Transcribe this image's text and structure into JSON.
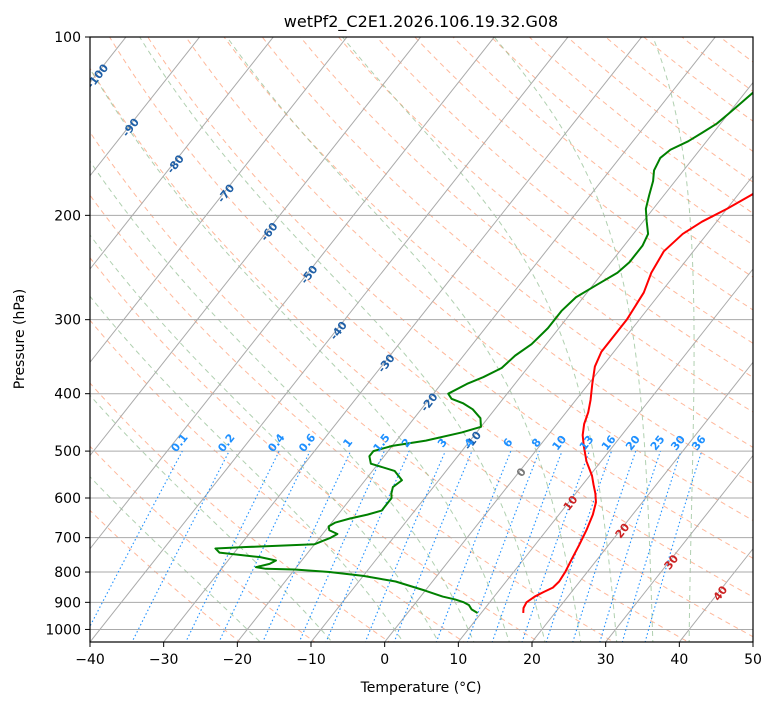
{
  "chart_data": {
    "type": "line",
    "title": "wetPf2_C2E1.2026.106.19.32.G08",
    "xlabel": "Temperature (°C)",
    "ylabel": "Pressure (hPa)",
    "xlim": [
      -40,
      50
    ],
    "ylim": [
      1050,
      100
    ],
    "y_scale": "log",
    "x_ticks": [
      "−40",
      "−30",
      "−20",
      "−10",
      "0",
      "10",
      "20",
      "30",
      "40",
      "50"
    ],
    "y_ticks": [
      "100",
      "200",
      "300",
      "400",
      "500",
      "600",
      "700",
      "800",
      "900",
      "1000"
    ],
    "grid": true,
    "series": [
      {
        "name": "",
        "color": "#ff0000",
        "points": [
          [
            15.7,
            938
          ],
          [
            15.2,
            920
          ],
          [
            15.0,
            900
          ],
          [
            15.5,
            880
          ],
          [
            16.2,
            865
          ],
          [
            17.0,
            850
          ],
          [
            17.2,
            830
          ],
          [
            17.0,
            800
          ],
          [
            16.5,
            760
          ],
          [
            16.0,
            720
          ],
          [
            15.4,
            680
          ],
          [
            14.6,
            640
          ],
          [
            13.7,
            610
          ],
          [
            12.7,
            590
          ],
          [
            11.5,
            570
          ],
          [
            10.3,
            550
          ],
          [
            8.0,
            520
          ],
          [
            6.0,
            490
          ],
          [
            4.7,
            470
          ],
          [
            3.7,
            450
          ],
          [
            3.0,
            430
          ],
          [
            2.0,
            410
          ],
          [
            0.5,
            385
          ],
          [
            -1.0,
            360
          ],
          [
            -1.7,
            340
          ],
          [
            -1.7,
            300
          ],
          [
            -2.3,
            270
          ],
          [
            -3.4,
            250
          ],
          [
            -4.0,
            230
          ],
          [
            -3.3,
            215
          ],
          [
            -2.0,
            205
          ],
          [
            0.0,
            195
          ],
          [
            1.8,
            185
          ],
          [
            3.5,
            175
          ],
          [
            5.2,
            167
          ],
          [
            7.0,
            160
          ],
          [
            8.2,
            155
          ],
          [
            9.4,
            150
          ],
          [
            10.3,
            145
          ],
          [
            10.8,
            140
          ],
          [
            11.3,
            135
          ],
          [
            11.9,
            130
          ],
          [
            12.5,
            126
          ],
          [
            13.5,
            122
          ],
          [
            14.8,
            118
          ],
          [
            15.8,
            114
          ],
          [
            16.6,
            110
          ],
          [
            17.4,
            106
          ],
          [
            18.6,
            102
          ],
          [
            19.0,
            100
          ]
        ]
      },
      {
        "name": "",
        "color": "#008000",
        "points": [
          [
            9.5,
            938
          ],
          [
            8.3,
            925
          ],
          [
            7.5,
            910
          ],
          [
            6.5,
            900
          ],
          [
            5.0,
            890
          ],
          [
            3.0,
            880
          ],
          [
            0.0,
            860
          ],
          [
            -5.0,
            830
          ],
          [
            -10.0,
            812
          ],
          [
            -15.0,
            800
          ],
          [
            -20.0,
            792
          ],
          [
            -24.0,
            790
          ],
          [
            -25.5,
            785
          ],
          [
            -24.0,
            775
          ],
          [
            -23.5,
            765
          ],
          [
            -26.0,
            755
          ],
          [
            -32.0,
            742
          ],
          [
            -33.0,
            730
          ],
          [
            -29.0,
            726
          ],
          [
            -20.0,
            718
          ],
          [
            -18.5,
            700
          ],
          [
            -18.0,
            690
          ],
          [
            -19.5,
            680
          ],
          [
            -20.0,
            670
          ],
          [
            -19.5,
            660
          ],
          [
            -18.0,
            650
          ],
          [
            -16.0,
            640
          ],
          [
            -14.5,
            630
          ],
          [
            -14.5,
            600
          ],
          [
            -15.0,
            590
          ],
          [
            -15.5,
            575
          ],
          [
            -15.0,
            560
          ],
          [
            -17.0,
            540
          ],
          [
            -21.0,
            525
          ],
          [
            -22.0,
            510
          ],
          [
            -22.0,
            500
          ],
          [
            -20.0,
            490
          ],
          [
            -16.0,
            480
          ],
          [
            -12.0,
            465
          ],
          [
            -10.0,
            455
          ],
          [
            -11.0,
            440
          ],
          [
            -13.0,
            425
          ],
          [
            -15.0,
            415
          ],
          [
            -17.0,
            408
          ],
          [
            -18.0,
            400
          ],
          [
            -16.5,
            385
          ],
          [
            -15.0,
            375
          ],
          [
            -13.5,
            362
          ],
          [
            -13.0,
            345
          ],
          [
            -12.0,
            330
          ],
          [
            -11.5,
            310
          ],
          [
            -11.5,
            290
          ],
          [
            -11.0,
            275
          ],
          [
            -9.5,
            262
          ],
          [
            -8.0,
            250
          ],
          [
            -7.5,
            240
          ],
          [
            -7.5,
            225
          ],
          [
            -8.0,
            215
          ],
          [
            -9.5,
            205
          ],
          [
            -11.0,
            195
          ],
          [
            -12.0,
            185
          ],
          [
            -13.0,
            175
          ],
          [
            -14.0,
            168
          ],
          [
            -14.5,
            160
          ],
          [
            -14.0,
            155
          ],
          [
            -12.5,
            150
          ],
          [
            -11.5,
            145
          ],
          [
            -10.5,
            140
          ],
          [
            -10.0,
            135
          ],
          [
            -9.5,
            130
          ],
          [
            -9.0,
            125
          ],
          [
            -8.5,
            120
          ],
          [
            -8.0,
            115
          ],
          [
            -7.5,
            110
          ],
          [
            -6.5,
            105
          ],
          [
            -5.5,
            100
          ]
        ]
      }
    ],
    "isotherm_labels": [
      "-100",
      "-90",
      "-80",
      "-70",
      "-60",
      "-50",
      "-40",
      "-30",
      "-20",
      "-10",
      "0",
      "10",
      "20",
      "30",
      "40"
    ],
    "mixing_ratio_labels": [
      "0.1",
      "0.2",
      "0.4",
      "0.6",
      "1",
      "1.5",
      "2",
      "3",
      "4",
      "6",
      "8",
      "10",
      "13",
      "16",
      "20",
      "25",
      "30",
      "36"
    ],
    "colors": {
      "isotherm_cold": "#1f5fa6",
      "isotherm_zero": "#777777",
      "isotherm_warm": "#cc2222",
      "mixing_ratio": "#1e90ff",
      "dry_adiabat": "#ffa07a",
      "moist_adiabat": "#8fbc8f",
      "grid": "#aaaaaa"
    }
  }
}
